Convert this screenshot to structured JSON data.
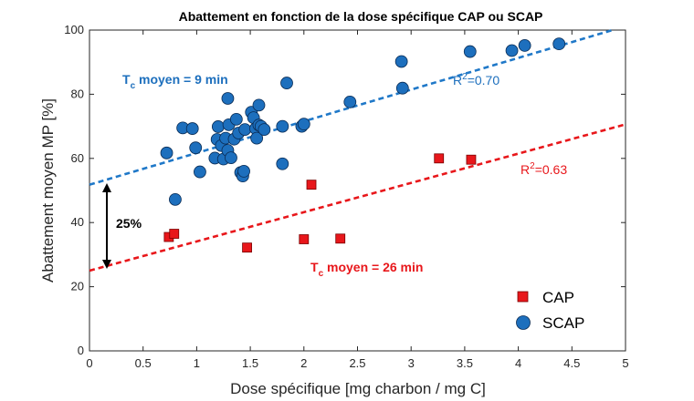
{
  "chart_data": {
    "type": "scatter",
    "title": "Abattement en fonction de la dose spécifique CAP ou SCAP",
    "xlabel": "Dose spécifique [mg charbon / mg C]",
    "ylabel": "Abattement moyen MP [%]",
    "xlim": [
      0,
      5
    ],
    "ylim": [
      0,
      100
    ],
    "xticks": [
      "0",
      "0.5",
      "1",
      "1.5",
      "2",
      "2.5",
      "3",
      "3.5",
      "4",
      "4.5",
      "5"
    ],
    "yticks": [
      "0",
      "20",
      "40",
      "60",
      "80",
      "100"
    ],
    "grid": false,
    "legend_position": "bottom-right",
    "colors": {
      "cap": "#e8171b",
      "scap": "#1d6fbd",
      "cap_line": "#e8171b",
      "scap_line": "#1f78c8"
    },
    "series": [
      {
        "name": "CAP",
        "marker": "square",
        "points": [
          [
            0.74,
            35.5
          ],
          [
            0.79,
            36.5
          ],
          [
            1.47,
            32.2
          ],
          [
            2.0,
            34.8
          ],
          [
            2.07,
            51.8
          ],
          [
            2.34,
            35.0
          ],
          [
            3.26,
            60.0
          ],
          [
            3.56,
            59.6
          ]
        ]
      },
      {
        "name": "SCAP",
        "marker": "circle",
        "points": [
          [
            0.72,
            61.7
          ],
          [
            0.8,
            47.2
          ],
          [
            0.87,
            69.5
          ],
          [
            0.96,
            69.3
          ],
          [
            0.99,
            63.3
          ],
          [
            1.03,
            55.8
          ],
          [
            1.17,
            60.1
          ],
          [
            1.19,
            65.9
          ],
          [
            1.2,
            69.9
          ],
          [
            1.23,
            64.0
          ],
          [
            1.25,
            59.8
          ],
          [
            1.27,
            66.3
          ],
          [
            1.29,
            78.7
          ],
          [
            1.29,
            62.5
          ],
          [
            1.3,
            70.5
          ],
          [
            1.32,
            60.2
          ],
          [
            1.35,
            66.0
          ],
          [
            1.37,
            72.2
          ],
          [
            1.39,
            67.9
          ],
          [
            1.41,
            55.6
          ],
          [
            1.43,
            54.5
          ],
          [
            1.44,
            56.0
          ],
          [
            1.45,
            69.0
          ],
          [
            1.51,
            74.4
          ],
          [
            1.53,
            72.7
          ],
          [
            1.55,
            69.3
          ],
          [
            1.56,
            66.3
          ],
          [
            1.58,
            76.6
          ],
          [
            1.58,
            70.4
          ],
          [
            1.6,
            70.0
          ],
          [
            1.63,
            69.0
          ],
          [
            1.8,
            58.3
          ],
          [
            1.8,
            70.0
          ],
          [
            1.84,
            83.5
          ],
          [
            1.98,
            70.0
          ],
          [
            2.0,
            70.7
          ],
          [
            2.43,
            77.6
          ],
          [
            2.91,
            90.2
          ],
          [
            2.92,
            81.9
          ],
          [
            3.55,
            93.3
          ],
          [
            3.94,
            93.6
          ],
          [
            4.06,
            95.2
          ],
          [
            4.38,
            95.7
          ]
        ]
      }
    ],
    "trendlines": [
      {
        "series": "SCAP",
        "x": [
          0,
          5
        ],
        "y": [
          51.8,
          101.2
        ],
        "label": "R",
        "exp": "2",
        "value": "=0.70"
      },
      {
        "series": "CAP",
        "x": [
          0,
          5
        ],
        "y": [
          25.0,
          70.6
        ],
        "label": "R",
        "exp": "2",
        "value": "=0.63"
      }
    ],
    "annotations": {
      "scap_tc_main": "T",
      "scap_tc_sub": "c",
      "scap_tc_rest": " moyen = 9 min",
      "cap_tc_main": "T",
      "cap_tc_sub": "c",
      "cap_tc_rest": " moyen = 26 min",
      "gap_label": "25%"
    }
  }
}
